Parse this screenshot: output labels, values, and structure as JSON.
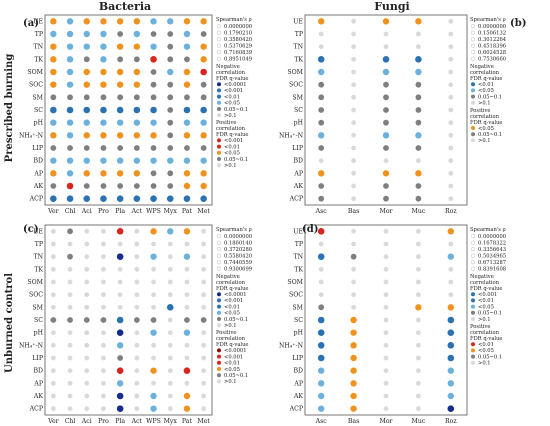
{
  "titles": {
    "bacteria": "Bacteria",
    "fungi": "Fungi"
  },
  "side_labels": {
    "top": "Prescribed burning",
    "bottom": "Unburned control"
  },
  "chart_data": [
    {
      "type": "heatmap",
      "id": "a",
      "panel_label": "(a)",
      "rows": [
        "UE",
        "TP",
        "TN",
        "TK",
        "SOM",
        "SOC",
        "SM",
        "SC",
        "pH",
        "NH₄⁺-N",
        "LIP",
        "BD",
        "AP",
        "AK",
        "ACP"
      ],
      "columns": [
        "Ver",
        "Chl",
        "Aci",
        "Pro",
        "Pla",
        "Act",
        "WPS",
        "Myx",
        "Pat",
        "Met"
      ],
      "legend": {
        "size_title": "Spearman's ρ",
        "size_values": [
          "0.0000000",
          "0.1790210",
          "0.3580420",
          "0.5370629",
          "0.7160839",
          "0.8951049"
        ],
        "neg_title": [
          "Negative",
          "correlation",
          "FDR q-value"
        ],
        "neg_items": [
          "<0.0001",
          "<0.001",
          "<0.01",
          "<0.05",
          "0.05~0.1",
          ">0.1"
        ],
        "pos_title": [
          "Positive",
          "correlation",
          "FDR q-value"
        ],
        "pos_items": [
          "<0.001",
          "<0.01",
          "<0.05",
          "0.05~0.1",
          ">0.1"
        ]
      },
      "cells": [
        [
          "o",
          "l",
          "o",
          "o",
          "o",
          "o",
          "l",
          "l",
          "o",
          "o"
        ],
        [
          "l",
          "l",
          "l",
          "l",
          "g",
          "l",
          "g",
          "g",
          "l",
          "g"
        ],
        [
          "o",
          "l",
          "l",
          "l",
          "o",
          "o",
          "l",
          "g",
          "l",
          "o"
        ],
        [
          "o",
          "l",
          "g",
          "l",
          "g",
          "g",
          "R",
          "g",
          "g",
          "o"
        ],
        [
          "o",
          "l",
          "o",
          "o",
          "o",
          "o",
          "g",
          "l",
          "o",
          "R"
        ],
        [
          "o",
          "l",
          "o",
          "o",
          "o",
          "o",
          "g",
          "g",
          "o",
          "g"
        ],
        [
          "g",
          "g",
          "g",
          "g",
          "g",
          "g",
          "g",
          "g",
          "g",
          "g"
        ],
        [
          "B",
          "B",
          "B",
          "B",
          "B",
          "B",
          "B",
          "g",
          "B",
          "B"
        ],
        [
          "l",
          "l",
          "l",
          "l",
          "l",
          "l",
          "l",
          "g",
          "l",
          "l"
        ],
        [
          "o",
          "l",
          "o",
          "o",
          "o",
          "o",
          "o",
          "g",
          "o",
          "o"
        ],
        [
          "g",
          "g",
          "g",
          "g",
          "g",
          "g",
          "g",
          "g",
          "g",
          "g"
        ],
        [
          "l",
          "l",
          "l",
          "l",
          "l",
          "l",
          "l",
          "l",
          "l",
          "l"
        ],
        [
          "o",
          "l",
          "o",
          "o",
          "o",
          "o",
          "g",
          "g",
          "o",
          "o"
        ],
        [
          "g",
          "R",
          "g",
          "g",
          "g",
          "g",
          "g",
          "g",
          "o",
          "o"
        ],
        [
          "B",
          "B",
          "B",
          "B",
          "B",
          "B",
          "B",
          "B",
          "B",
          "B"
        ]
      ]
    },
    {
      "type": "heatmap",
      "id": "b",
      "panel_label": "(b)",
      "rows": [
        "UE",
        "TP",
        "TN",
        "TK",
        "SOM",
        "SOC",
        "SM",
        "SC",
        "pH",
        "NH₄⁺-N",
        "LIP",
        "BD",
        "AP",
        "AK",
        "ACP"
      ],
      "columns": [
        "Asc",
        "Bas",
        "Mor",
        "Muc",
        "Roz"
      ],
      "legend": {
        "size_title": "Spearman's ρ",
        "size_values": [
          "0.0000000",
          "0.1506132",
          "0.3012264",
          "0.4518396",
          "0.6024528",
          "0.7530660"
        ],
        "neg_title": [
          "Negative",
          "correlation",
          "FDR q-value"
        ],
        "neg_items": [
          "<0.01",
          "<0.05",
          "0.05~0.1",
          ">0.1"
        ],
        "pos_title": [
          "Positive",
          "correlation",
          "FDR q-value"
        ],
        "pos_items": [
          "<0.05",
          "0.05~0.1",
          ">0.1"
        ]
      },
      "cells": [
        [
          "o",
          "s",
          "o",
          "o",
          "s"
        ],
        [
          "s",
          "s",
          "s",
          "s",
          "s"
        ],
        [
          "s",
          "s",
          "s",
          "s",
          "s"
        ],
        [
          "B",
          "s",
          "B",
          "B",
          "s"
        ],
        [
          "l",
          "s",
          "l",
          "l",
          "s"
        ],
        [
          "g",
          "s",
          "g",
          "g",
          "s"
        ],
        [
          "g",
          "s",
          "g",
          "g",
          "s"
        ],
        [
          "g",
          "s",
          "g",
          "g",
          "s"
        ],
        [
          "g",
          "s",
          "g",
          "g",
          "s"
        ],
        [
          "l",
          "s",
          "l",
          "l",
          "s"
        ],
        [
          "g",
          "s",
          "g",
          "g",
          "s"
        ],
        [
          "s",
          "s",
          "s",
          "s",
          "s"
        ],
        [
          "o",
          "s",
          "o",
          "o",
          "s"
        ],
        [
          "g",
          "s",
          "g",
          "g",
          "s"
        ],
        [
          "g",
          "s",
          "g",
          "g",
          "s"
        ]
      ]
    },
    {
      "type": "heatmap",
      "id": "c",
      "panel_label": "(c)",
      "rows": [
        "UE",
        "TP",
        "TN",
        "TK",
        "SOM",
        "SOC",
        "SM",
        "SC",
        "pH",
        "NH₄⁺-N",
        "LIP",
        "BD",
        "AP",
        "AK",
        "ACP"
      ],
      "columns": [
        "Ver",
        "Chl",
        "Aci",
        "Pro",
        "Pla",
        "Act",
        "WPS",
        "Myx",
        "Pat",
        "Met"
      ],
      "legend": {
        "size_title": "Spearman's ρ",
        "size_values": [
          "0.0000000",
          "0.1860140",
          "0.3720280",
          "0.5580420",
          "0.7440559",
          "0.9300699"
        ],
        "neg_title": [
          "Negative",
          "correlation",
          "FDR q-value"
        ],
        "neg_items": [
          "<0.0001",
          "<0.001",
          "<0.01",
          "<0.05",
          "0.05~0.1",
          ">0.1"
        ],
        "pos_title": [
          "Positive",
          "correlation",
          "FDR q-value"
        ],
        "pos_items": [
          "<0.0001",
          "<0.001",
          "<0.01",
          "<0.05",
          "0.05~0.1",
          ">0.1"
        ]
      },
      "cells": [
        [
          "s",
          "g",
          "s",
          "s",
          "R",
          "s",
          "o",
          "l",
          "o",
          "s"
        ],
        [
          "s",
          "s",
          "s",
          "s",
          "s",
          "s",
          "s",
          "s",
          "s",
          "s"
        ],
        [
          "s",
          "g",
          "s",
          "s",
          "N",
          "s",
          "l",
          "s",
          "l",
          "s"
        ],
        [
          "s",
          "s",
          "s",
          "s",
          "s",
          "s",
          "s",
          "s",
          "s",
          "s"
        ],
        [
          "s",
          "s",
          "s",
          "s",
          "s",
          "s",
          "s",
          "s",
          "s",
          "s"
        ],
        [
          "s",
          "s",
          "s",
          "s",
          "s",
          "s",
          "s",
          "s",
          "s",
          "s"
        ],
        [
          "s",
          "s",
          "s",
          "s",
          "s",
          "s",
          "s",
          "B",
          "s",
          "s"
        ],
        [
          "g",
          "g",
          "g",
          "g",
          "B",
          "g",
          "g",
          "s",
          "g",
          "g"
        ],
        [
          "s",
          "s",
          "s",
          "s",
          "N",
          "s",
          "l",
          "s",
          "l",
          "s"
        ],
        [
          "s",
          "s",
          "s",
          "s",
          "l",
          "s",
          "s",
          "s",
          "s",
          "s"
        ],
        [
          "s",
          "s",
          "s",
          "s",
          "g",
          "s",
          "s",
          "s",
          "s",
          "s"
        ],
        [
          "s",
          "s",
          "s",
          "s",
          "R",
          "s",
          "o",
          "s",
          "R",
          "s"
        ],
        [
          "s",
          "s",
          "s",
          "s",
          "l",
          "s",
          "s",
          "s",
          "s",
          "s"
        ],
        [
          "s",
          "s",
          "s",
          "s",
          "N",
          "s",
          "l",
          "s",
          "o",
          "s"
        ],
        [
          "s",
          "s",
          "s",
          "s",
          "N",
          "s",
          "l",
          "s",
          "o",
          "s"
        ]
      ]
    },
    {
      "type": "heatmap",
      "id": "d",
      "panel_label": "(d)",
      "rows": [
        "UE",
        "TP",
        "TN",
        "TK",
        "SOM",
        "SOC",
        "SM",
        "SC",
        "pH",
        "NH₄⁺-N",
        "LIP",
        "BD",
        "AP",
        "AK",
        "ACP"
      ],
      "columns": [
        "Asc",
        "Bas",
        "Mor",
        "Muc",
        "Roz"
      ],
      "legend": {
        "size_title": "Spearman's ρ",
        "size_values": [
          "0.0000000",
          "0.1678322",
          "0.3356643",
          "0.5034965",
          "0.6713287",
          "0.8391608"
        ],
        "neg_title": [
          "Negative",
          "correlation",
          "FDR q-value"
        ],
        "neg_items": [
          "<0.001",
          "<0.01",
          "<0.05",
          "0.05~0.1",
          ">0.1"
        ],
        "pos_title": [
          "Positive",
          "correlation",
          "FDR q-value"
        ],
        "pos_items": [
          "<0.01",
          "<0.05",
          "0.05~0.1",
          ">0.1"
        ]
      },
      "cells": [
        [
          "R",
          "s",
          "s",
          "s",
          "o"
        ],
        [
          "s",
          "s",
          "s",
          "s",
          "s"
        ],
        [
          "B",
          "g",
          "s",
          "s",
          "l"
        ],
        [
          "s",
          "s",
          "s",
          "s",
          "s"
        ],
        [
          "s",
          "s",
          "s",
          "s",
          "s"
        ],
        [
          "s",
          "s",
          "s",
          "s",
          "s"
        ],
        [
          "g",
          "s",
          "s",
          "o",
          "o"
        ],
        [
          "B",
          "o",
          "s",
          "s",
          "B"
        ],
        [
          "B",
          "o",
          "s",
          "s",
          "B"
        ],
        [
          "B",
          "o",
          "s",
          "s",
          "B"
        ],
        [
          "B",
          "o",
          "s",
          "s",
          "B"
        ],
        [
          "l",
          "o",
          "s",
          "s",
          "l"
        ],
        [
          "l",
          "o",
          "s",
          "s",
          "l"
        ],
        [
          "l",
          "o",
          "s",
          "s",
          "l"
        ],
        [
          "l",
          "o",
          "s",
          "s",
          "N"
        ]
      ]
    }
  ],
  "colors": {
    "orange": "#f0921e",
    "light_blue": "#6bb1dc",
    "blue": "#2a72b2",
    "navy": "#152c8c",
    "dark_red": "#8b0d0d",
    "red": "#d7261e",
    "gray": "#7f7f7f",
    "light_gray": "#d9d9d9",
    "frame": "#555555"
  }
}
